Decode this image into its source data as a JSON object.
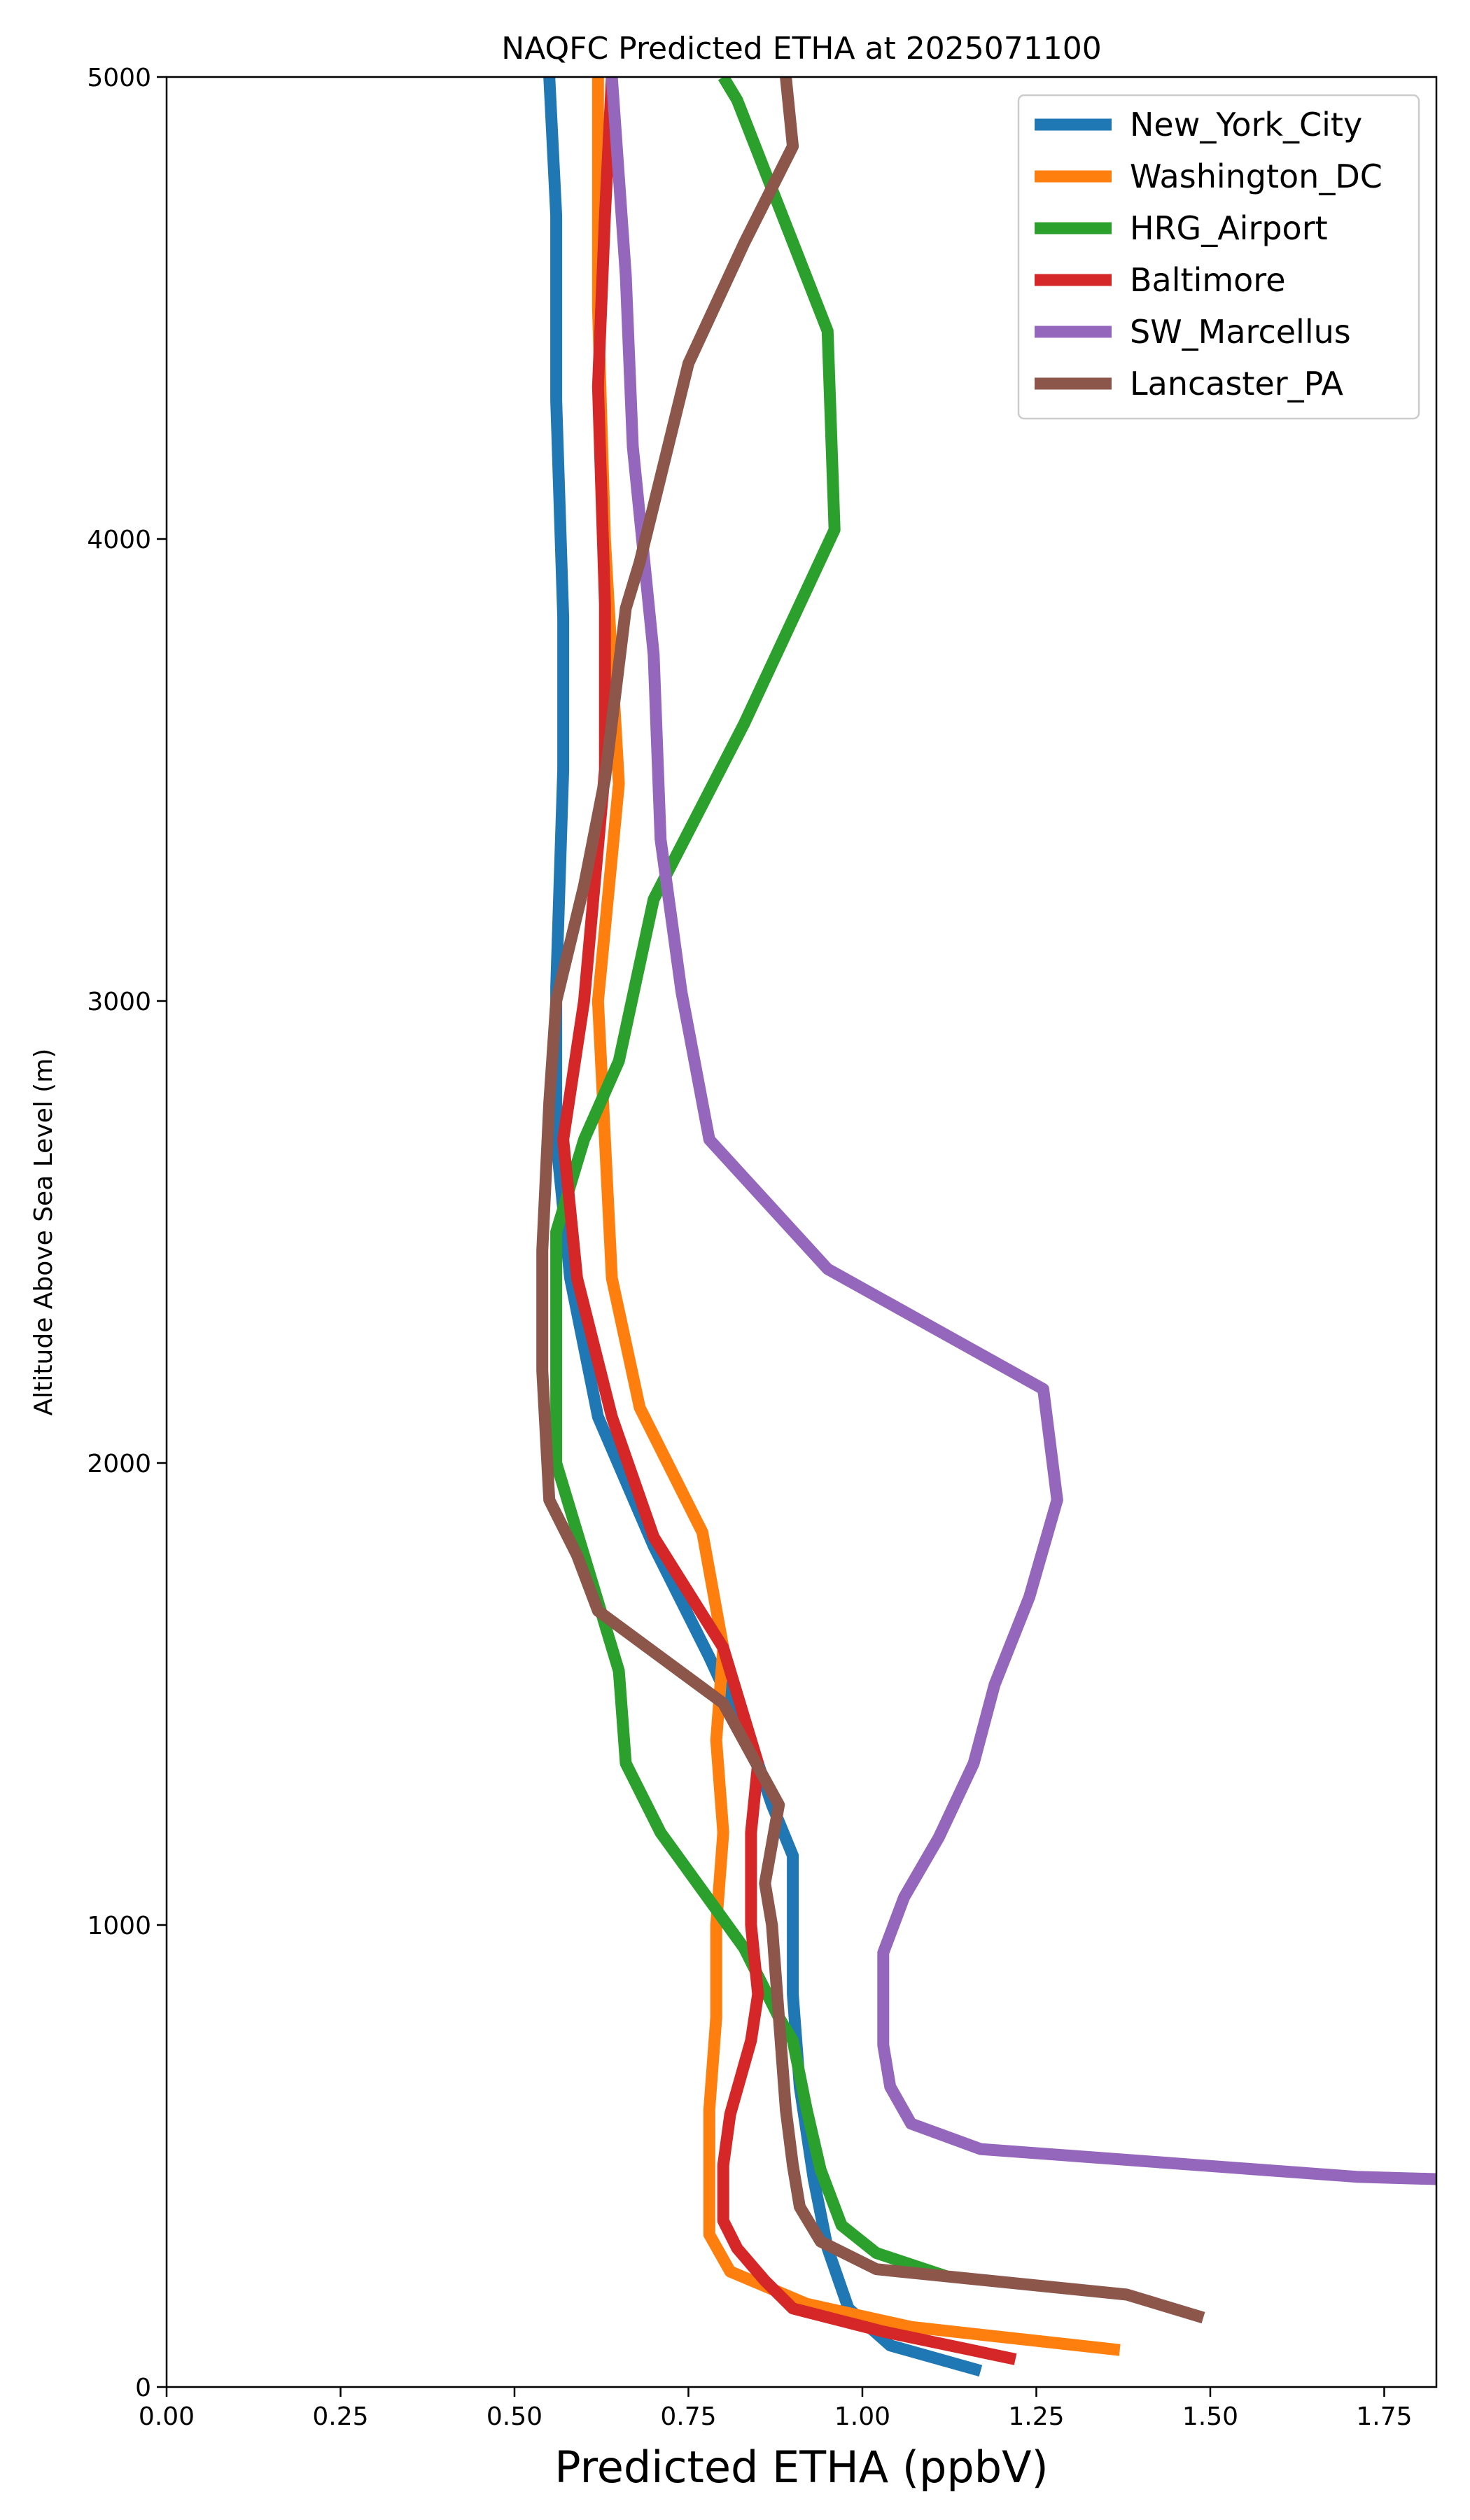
{
  "chart_data": {
    "type": "line",
    "title": "NAQFC Predicted ETHA at 2025071100",
    "xlabel": "Predicted ETHA (ppbV)",
    "ylabel": "Altitude Above Sea Level (m)",
    "xlim": [
      0,
      1.825
    ],
    "ylim": [
      0,
      5000
    ],
    "x_ticks": [
      "0.00",
      "0.25",
      "0.50",
      "0.75",
      "1.00",
      "1.25",
      "1.50",
      "1.75"
    ],
    "y_ticks": [
      "0",
      "1000",
      "2000",
      "3000",
      "4000",
      "5000"
    ],
    "grid": false,
    "legend_position": "top-right",
    "series": [
      {
        "name": "New_York_City",
        "color": "#1f77b4",
        "points": [
          [
            1.17,
            35
          ],
          [
            1.04,
            90
          ],
          [
            0.98,
            170
          ],
          [
            0.95,
            300
          ],
          [
            0.93,
            450
          ],
          [
            0.91,
            650
          ],
          [
            0.9,
            850
          ],
          [
            0.9,
            1000
          ],
          [
            0.9,
            1150
          ],
          [
            0.87,
            1260
          ],
          [
            0.85,
            1350
          ],
          [
            0.78,
            1580
          ],
          [
            0.7,
            1820
          ],
          [
            0.62,
            2100
          ],
          [
            0.58,
            2400
          ],
          [
            0.56,
            2700
          ],
          [
            0.56,
            3030
          ],
          [
            0.57,
            3500
          ],
          [
            0.57,
            3830
          ],
          [
            0.56,
            4300
          ],
          [
            0.56,
            4700
          ],
          [
            0.55,
            5000
          ]
        ]
      },
      {
        "name": "Washington_DC",
        "color": "#ff7f0e",
        "points": [
          [
            1.37,
            80
          ],
          [
            1.07,
            130
          ],
          [
            0.92,
            180
          ],
          [
            0.81,
            250
          ],
          [
            0.78,
            330
          ],
          [
            0.78,
            400
          ],
          [
            0.78,
            600
          ],
          [
            0.79,
            800
          ],
          [
            0.79,
            1000
          ],
          [
            0.8,
            1200
          ],
          [
            0.79,
            1400
          ],
          [
            0.8,
            1600
          ],
          [
            0.77,
            1850
          ],
          [
            0.68,
            2120
          ],
          [
            0.64,
            2400
          ],
          [
            0.63,
            2700
          ],
          [
            0.62,
            3000
          ],
          [
            0.65,
            3470
          ],
          [
            0.63,
            4000
          ],
          [
            0.62,
            4500
          ],
          [
            0.62,
            5000
          ]
        ]
      },
      {
        "name": "HRG_Airport",
        "color": "#2ca02c",
        "points": [
          [
            1.12,
            240
          ],
          [
            1.02,
            290
          ],
          [
            0.97,
            350
          ],
          [
            0.94,
            470
          ],
          [
            0.92,
            600
          ],
          [
            0.9,
            750
          ],
          [
            0.88,
            800
          ],
          [
            0.83,
            950
          ],
          [
            0.71,
            1200
          ],
          [
            0.66,
            1350
          ],
          [
            0.65,
            1550
          ],
          [
            0.6,
            1800
          ],
          [
            0.56,
            2000
          ],
          [
            0.56,
            2500
          ],
          [
            0.6,
            2700
          ],
          [
            0.65,
            2870
          ],
          [
            0.7,
            3220
          ],
          [
            0.83,
            3600
          ],
          [
            0.96,
            4020
          ],
          [
            0.95,
            4450
          ],
          [
            0.82,
            4950
          ],
          [
            0.8,
            5000
          ]
        ]
      },
      {
        "name": "Baltimore",
        "color": "#d62728",
        "points": [
          [
            1.22,
            60
          ],
          [
            1.03,
            120
          ],
          [
            0.9,
            170
          ],
          [
            0.86,
            230
          ],
          [
            0.82,
            300
          ],
          [
            0.8,
            360
          ],
          [
            0.8,
            480
          ],
          [
            0.81,
            590
          ],
          [
            0.84,
            750
          ],
          [
            0.85,
            850
          ],
          [
            0.84,
            1000
          ],
          [
            0.84,
            1200
          ],
          [
            0.85,
            1350
          ],
          [
            0.8,
            1600
          ],
          [
            0.7,
            1840
          ],
          [
            0.64,
            2100
          ],
          [
            0.59,
            2400
          ],
          [
            0.57,
            2700
          ],
          [
            0.6,
            3000
          ],
          [
            0.63,
            3500
          ],
          [
            0.63,
            3860
          ],
          [
            0.62,
            4330
          ],
          [
            0.63,
            4700
          ],
          [
            0.64,
            5000
          ]
        ]
      },
      {
        "name": "SW_Marcellus",
        "color": "#9467bd",
        "points": [
          [
            1.825,
            450
          ],
          [
            1.71,
            455
          ],
          [
            1.17,
            515
          ],
          [
            1.07,
            570
          ],
          [
            1.04,
            650
          ],
          [
            1.03,
            740
          ],
          [
            1.03,
            940
          ],
          [
            1.06,
            1060
          ],
          [
            1.11,
            1190
          ],
          [
            1.16,
            1350
          ],
          [
            1.19,
            1520
          ],
          [
            1.24,
            1710
          ],
          [
            1.28,
            1920
          ],
          [
            1.26,
            2160
          ],
          [
            0.95,
            2420
          ],
          [
            0.78,
            2700
          ],
          [
            0.74,
            3020
          ],
          [
            0.71,
            3350
          ],
          [
            0.7,
            3750
          ],
          [
            0.67,
            4200
          ],
          [
            0.66,
            4570
          ],
          [
            0.64,
            5000
          ]
        ]
      },
      {
        "name": "Lancaster_PA",
        "color": "#8c564b",
        "points": [
          [
            1.49,
            150
          ],
          [
            1.38,
            200
          ],
          [
            1.02,
            255
          ],
          [
            0.94,
            315
          ],
          [
            0.91,
            390
          ],
          [
            0.9,
            480
          ],
          [
            0.89,
            600
          ],
          [
            0.88,
            800
          ],
          [
            0.87,
            1000
          ],
          [
            0.86,
            1090
          ],
          [
            0.88,
            1260
          ],
          [
            0.8,
            1480
          ],
          [
            0.62,
            1680
          ],
          [
            0.59,
            1800
          ],
          [
            0.55,
            1920
          ],
          [
            0.54,
            2200
          ],
          [
            0.54,
            2460
          ],
          [
            0.55,
            2780
          ],
          [
            0.56,
            3000
          ],
          [
            0.6,
            3250
          ],
          [
            0.63,
            3480
          ],
          [
            0.66,
            3850
          ],
          [
            0.68,
            3950
          ],
          [
            0.75,
            4380
          ],
          [
            0.83,
            4640
          ],
          [
            0.9,
            4850
          ],
          [
            0.89,
            5000
          ]
        ]
      }
    ]
  }
}
